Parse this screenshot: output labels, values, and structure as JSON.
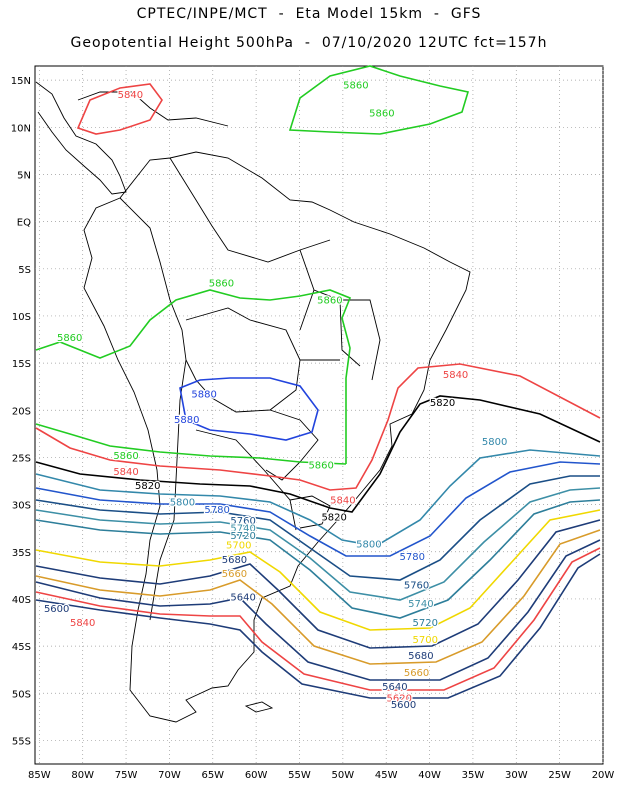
{
  "header": {
    "line1": "CPTEC/INPE/MCT  -  Eta Model 15km  -  GFS",
    "line2": "Geopotential Height 500hPa  -  07/10/2020 12UTC fct=157h"
  },
  "map": {
    "lat_ticks": [
      "15N",
      "10N",
      "5N",
      "EQ",
      "5S",
      "10S",
      "15S",
      "20S",
      "25S",
      "30S",
      "35S",
      "40S",
      "45S",
      "50S",
      "55S"
    ],
    "lon_ticks": [
      "85W",
      "80W",
      "75W",
      "70W",
      "65W",
      "60W",
      "55W",
      "50W",
      "45W",
      "40W",
      "35W",
      "30W",
      "25W",
      "20W"
    ],
    "lat_values": [
      15,
      10,
      5,
      0,
      -5,
      -10,
      -15,
      -20,
      -25,
      -30,
      -35,
      -40,
      -45,
      -50,
      -55
    ],
    "lon_values": [
      -85,
      -80,
      -75,
      -70,
      -65,
      -60,
      -55,
      -50,
      -45,
      -40,
      -35,
      -30,
      -25,
      -20
    ],
    "extent": {
      "lon": [
        -85.5,
        -20
      ],
      "lat": [
        -57.5,
        16.5
      ]
    },
    "gridlines": "dotted",
    "contours": [
      {
        "value": "5860",
        "color": "#22cc22",
        "labels": [
          {
            "text": "5860",
            "lon": -48.5,
            "lat": 14.5
          },
          {
            "text": "5860",
            "lon": -45.5,
            "lat": 11.5
          },
          {
            "text": "5860",
            "lon": -64,
            "lat": -6.5
          },
          {
            "text": "5860",
            "lon": -51.5,
            "lat": -8.3
          },
          {
            "text": "5860",
            "lon": -81.5,
            "lat": -12.3
          },
          {
            "text": "5860",
            "lon": -75,
            "lat": -24.8
          },
          {
            "text": "5860",
            "lon": -52.5,
            "lat": -25.8
          }
        ]
      },
      {
        "value": "5880",
        "color": "#2244dd",
        "labels": [
          {
            "text": "5880",
            "lon": -66,
            "lat": -18.3
          },
          {
            "text": "5880",
            "lon": -68,
            "lat": -21.0
          }
        ]
      },
      {
        "value": "5840",
        "color": "#ee4444",
        "labels": [
          {
            "text": "5840",
            "lon": -74.5,
            "lat": 13.5
          },
          {
            "text": "5840",
            "lon": -37,
            "lat": -16.2
          },
          {
            "text": "5840",
            "lon": -75,
            "lat": -26.5
          },
          {
            "text": "5840",
            "lon": -50,
            "lat": -29.5
          },
          {
            "text": "5840",
            "lon": -80,
            "lat": -42.5
          }
        ]
      },
      {
        "value": "5820",
        "color": "#000000",
        "labels": [
          {
            "text": "5820",
            "lon": -38.5,
            "lat": -19.2
          },
          {
            "text": "5820",
            "lon": -72.5,
            "lat": -28.0
          },
          {
            "text": "5820",
            "lon": -51,
            "lat": -31.3
          }
        ]
      },
      {
        "value": "5800",
        "color": "#3388aa",
        "labels": [
          {
            "text": "5800",
            "lon": -32.5,
            "lat": -23.3
          },
          {
            "text": "5800",
            "lon": -68.5,
            "lat": -29.7
          },
          {
            "text": "5800",
            "lon": -47,
            "lat": -34.2
          }
        ]
      },
      {
        "value": "5780",
        "color": "#2255cc",
        "labels": [
          {
            "text": "5780",
            "lon": -64.5,
            "lat": -30.5
          },
          {
            "text": "5780",
            "lon": -42,
            "lat": -35.5
          }
        ]
      },
      {
        "value": "5760",
        "color": "#1a4e86",
        "labels": [
          {
            "text": "5760",
            "lon": -61.5,
            "lat": -31.7
          },
          {
            "text": "5760",
            "lon": -41.5,
            "lat": -38.5
          }
        ]
      },
      {
        "value": "5740",
        "color": "#3d8fa6",
        "labels": [
          {
            "text": "5740",
            "lon": -61.5,
            "lat": -32.5
          },
          {
            "text": "5740",
            "lon": -41,
            "lat": -40.5
          }
        ]
      },
      {
        "value": "5720",
        "color": "#2d7e9a",
        "labels": [
          {
            "text": "5720",
            "lon": -61.5,
            "lat": -33.3
          },
          {
            "text": "5720",
            "lon": -40.5,
            "lat": -42.5
          }
        ]
      },
      {
        "value": "5700",
        "color": "#f0d800",
        "labels": [
          {
            "text": "5700",
            "lon": -62,
            "lat": -34.3
          },
          {
            "text": "5700",
            "lon": -40.5,
            "lat": -44.3
          }
        ]
      },
      {
        "value": "5680",
        "color": "#1e3c78",
        "labels": [
          {
            "text": "5680",
            "lon": -62.5,
            "lat": -35.8
          },
          {
            "text": "5680",
            "lon": -41,
            "lat": -46.0
          }
        ]
      },
      {
        "value": "5660",
        "color": "#d89b2a",
        "labels": [
          {
            "text": "5660",
            "lon": -62.5,
            "lat": -37.3
          },
          {
            "text": "5660",
            "lon": -41.5,
            "lat": -47.8
          }
        ]
      },
      {
        "value": "5640",
        "color": "#1e3c78",
        "labels": [
          {
            "text": "5640",
            "lon": -61.5,
            "lat": -39.8
          },
          {
            "text": "5640",
            "lon": -44,
            "lat": -49.3
          }
        ]
      },
      {
        "value": "5620",
        "color": "#ee4444",
        "labels": [
          {
            "text": "5620",
            "lon": -43.5,
            "lat": -50.5
          }
        ]
      },
      {
        "value": "5600",
        "color": "#1e3c78",
        "labels": [
          {
            "text": "5600",
            "lon": -83,
            "lat": -41.0
          },
          {
            "text": "5600",
            "lon": -43,
            "lat": -51.2
          }
        ]
      }
    ]
  }
}
